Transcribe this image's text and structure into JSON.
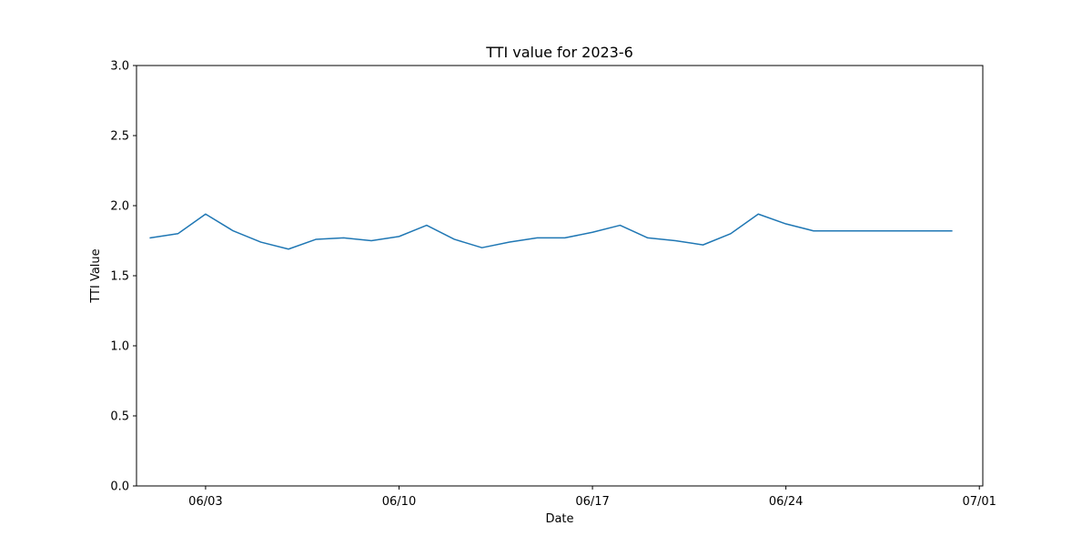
{
  "chart_data": {
    "type": "line",
    "title": "TTI value for 2023-6",
    "xlabel": "Date",
    "ylabel": "TTI Value",
    "xlim": [
      "2023-05-31T12:00",
      "2023-07-01T03:00"
    ],
    "ylim": [
      0.0,
      3.0
    ],
    "x_ticks": [
      "2023-06-03",
      "2023-06-10",
      "2023-06-17",
      "2023-06-24",
      "2023-07-01"
    ],
    "x_tick_labels": [
      "06/03",
      "06/10",
      "06/17",
      "06/24",
      "07/01"
    ],
    "y_ticks": [
      0.0,
      0.5,
      1.0,
      1.5,
      2.0,
      2.5,
      3.0
    ],
    "y_tick_labels": [
      "0.0",
      "0.5",
      "1.0",
      "1.5",
      "2.0",
      "2.5",
      "3.0"
    ],
    "grid": false,
    "series": [
      {
        "color": "#1f77b4",
        "x": [
          "2023-06-01",
          "2023-06-02",
          "2023-06-03",
          "2023-06-04",
          "2023-06-05",
          "2023-06-06",
          "2023-06-07",
          "2023-06-08",
          "2023-06-09",
          "2023-06-10",
          "2023-06-11",
          "2023-06-12",
          "2023-06-13",
          "2023-06-14",
          "2023-06-15",
          "2023-06-16",
          "2023-06-17",
          "2023-06-18",
          "2023-06-19",
          "2023-06-20",
          "2023-06-21",
          "2023-06-22",
          "2023-06-23",
          "2023-06-24",
          "2023-06-25",
          "2023-06-26",
          "2023-06-27",
          "2023-06-28",
          "2023-06-29",
          "2023-06-30"
        ],
        "values": [
          1.77,
          1.8,
          1.94,
          1.82,
          1.74,
          1.69,
          1.76,
          1.77,
          1.75,
          1.78,
          1.86,
          1.76,
          1.7,
          1.74,
          1.77,
          1.77,
          1.81,
          1.86,
          1.77,
          1.75,
          1.72,
          1.8,
          1.94,
          1.87,
          1.82,
          1.82,
          1.82,
          1.82,
          1.82,
          1.82
        ]
      }
    ]
  }
}
